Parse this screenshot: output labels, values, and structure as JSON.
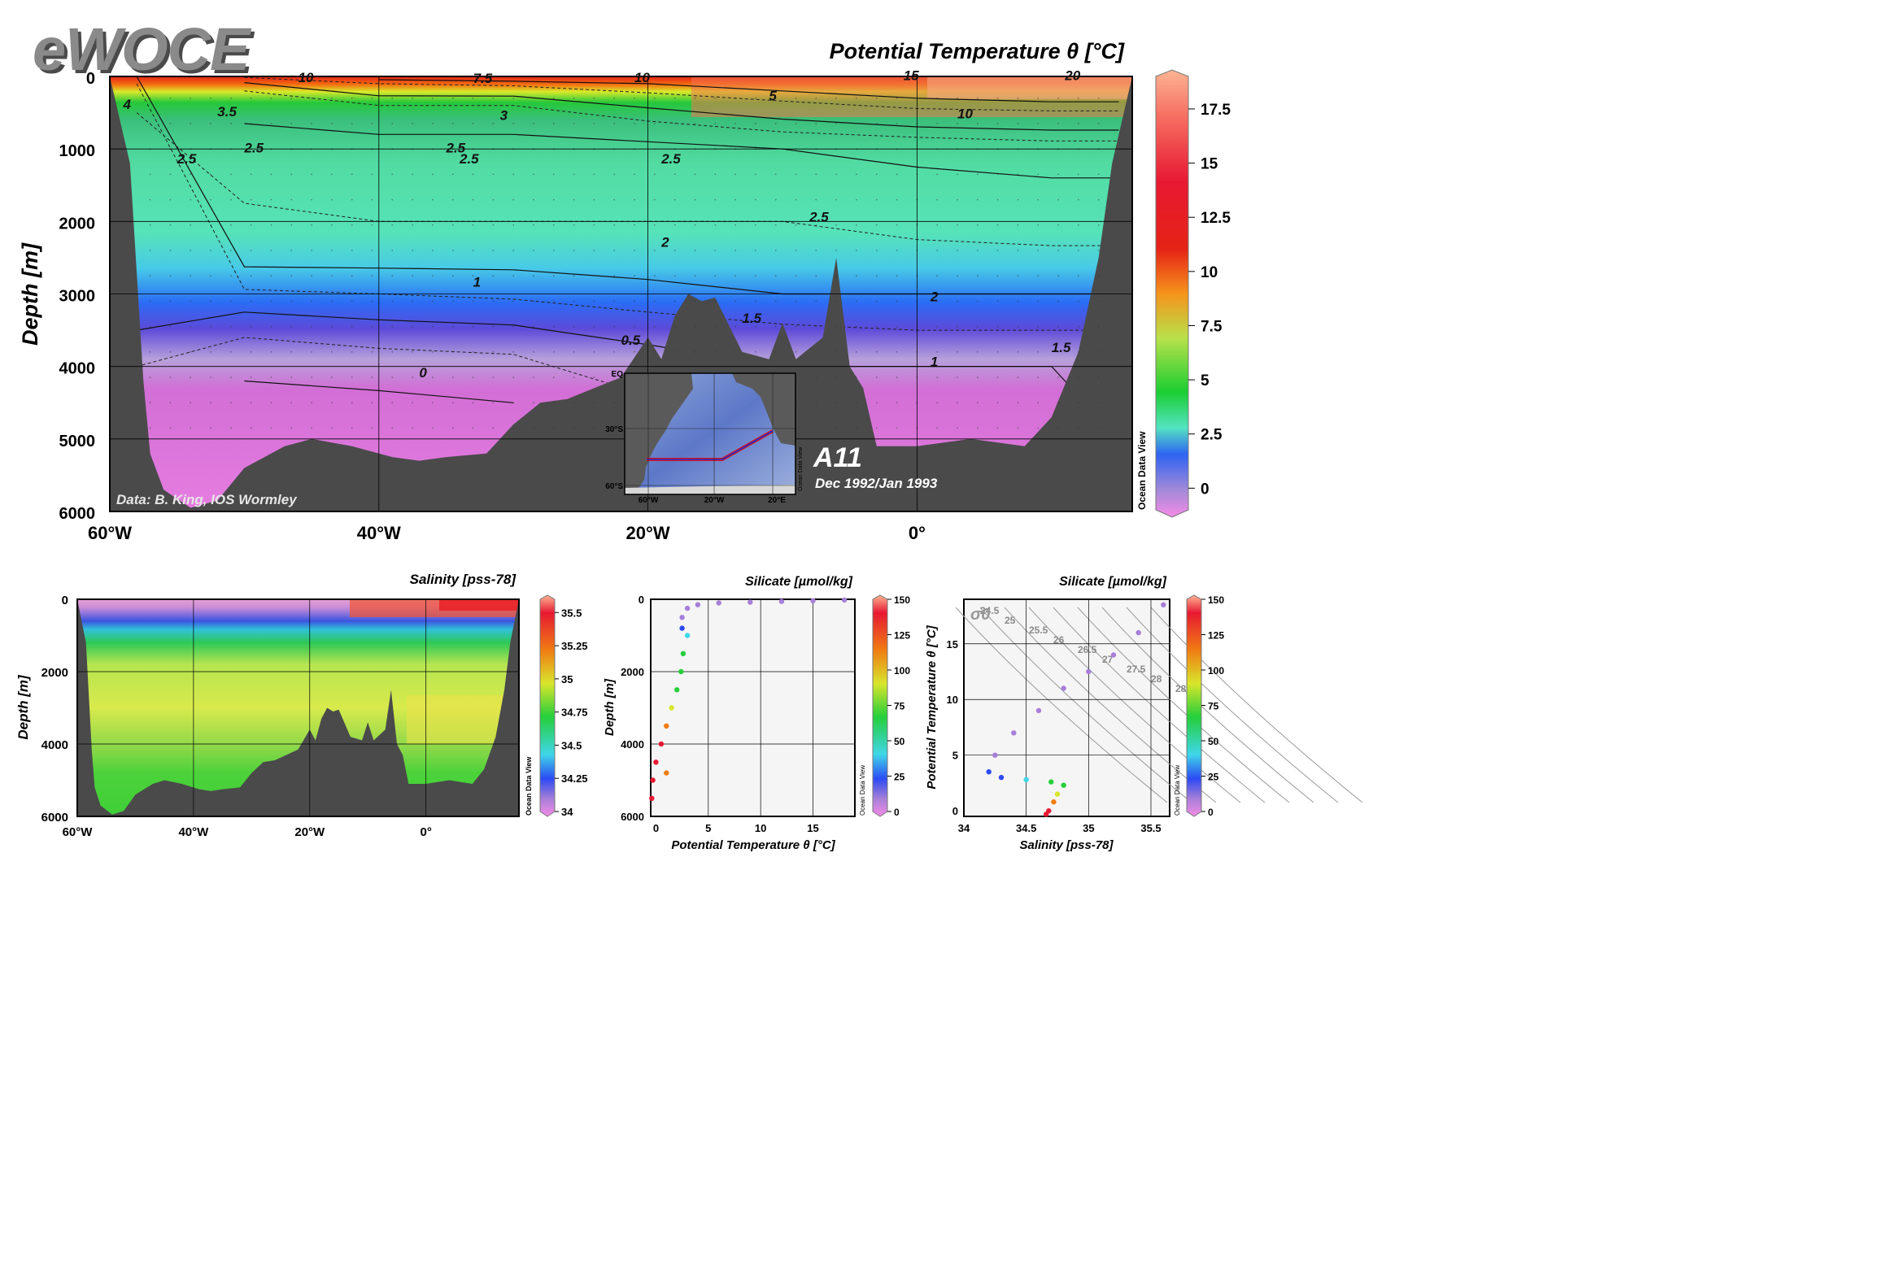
{
  "logo": "eWOCE",
  "main_section": {
    "title": "Potential Temperature θ [°C]",
    "ylabel": "Depth [m]",
    "y_ticks": [
      "0",
      "1000",
      "2000",
      "3000",
      "4000",
      "5000",
      "6000"
    ],
    "x_ticks": [
      "60°W",
      "40°W",
      "20°W",
      "0°"
    ],
    "credit": "Data: B. King, IOS Wormley",
    "cruise": "A11",
    "dates": "Dec 1992/Jan 1993",
    "odv": "Ocean Data View",
    "contour_labels": [
      "10",
      "7.5",
      "10",
      "15",
      "20",
      "4",
      "3.5",
      "3",
      "5",
      "10",
      "2.5",
      "2.5",
      "2.5",
      "2.5",
      "2.5",
      "2.5",
      "2",
      "1",
      "2",
      "1.5",
      "1.5",
      "0.5",
      "1",
      "0"
    ],
    "colorbar_ticks": [
      "17.5",
      "15",
      "12.5",
      "10",
      "7.5",
      "5",
      "2.5",
      "0"
    ]
  },
  "inset_map": {
    "lat_labels": [
      "EQ",
      "30°S",
      "60°S"
    ],
    "lon_labels": [
      "60°W",
      "20°W",
      "20°E"
    ],
    "odv": "Ocean Data View"
  },
  "salinity_section": {
    "title": "Salinity [pss-78]",
    "ylabel": "Depth [m]",
    "y_ticks": [
      "0",
      "2000",
      "4000",
      "6000"
    ],
    "x_ticks": [
      "60°W",
      "40°W",
      "20°W",
      "0°"
    ],
    "colorbar_ticks": [
      "35.5",
      "35.25",
      "35",
      "34.75",
      "34.5",
      "34.25",
      "34"
    ],
    "odv": "Ocean Data View"
  },
  "profile_plot": {
    "title": "Silicate [µmol/kg]",
    "xlabel": "Potential Temperature θ [°C]",
    "ylabel": "Depth [m]",
    "x_ticks": [
      "0",
      "5",
      "10",
      "15"
    ],
    "y_ticks": [
      "0",
      "2000",
      "4000",
      "6000"
    ],
    "colorbar_ticks": [
      "150",
      "125",
      "100",
      "75",
      "50",
      "25",
      "0"
    ],
    "odv": "Ocean Data View"
  },
  "ts_plot": {
    "title": "Silicate [µmol/kg]",
    "xlabel": "Salinity [pss-78]",
    "ylabel": "Potential Temperature θ [°C]",
    "x_ticks": [
      "34",
      "34.5",
      "35",
      "35.5"
    ],
    "y_ticks": [
      "15",
      "10",
      "5",
      "0"
    ],
    "sigma_label": "σ0",
    "isopycnal_labels": [
      "24.5",
      "25",
      "25.5",
      "26",
      "26.5",
      "27",
      "27.5",
      "28",
      "28.5"
    ],
    "colorbar_ticks": [
      "150",
      "125",
      "100",
      "75",
      "50",
      "25",
      "0"
    ],
    "odv": "Ocean Data View"
  },
  "chart_data": [
    {
      "type": "heatmap",
      "title": "Potential Temperature θ [°C]",
      "xlabel": "",
      "ylabel": "Depth [m]",
      "xlim": [
        -60,
        16
      ],
      "ylim": [
        6000,
        0
      ],
      "colorbar_range": [
        -1,
        19
      ],
      "profile_z": [
        0,
        100,
        300,
        500,
        800,
        1000,
        1500,
        2000,
        2500,
        3000,
        3500,
        4000,
        5000,
        6000
      ],
      "profiles": [
        {
          "x": -58,
          "temp": [
            2.0,
            1.5,
            2.0,
            2.5,
            2.5,
            2.5,
            2.5,
            2.2,
            2.0,
            1.5,
            1.0,
            0.5,
            0.2,
            0.1
          ]
        },
        {
          "x": -50,
          "temp": [
            8.0,
            4.5,
            3.5,
            3.2,
            2.8,
            2.6,
            2.6,
            2.4,
            2.2,
            1.4,
            0.6,
            0.1,
            -0.4,
            -0.5
          ]
        },
        {
          "x": -40,
          "temp": [
            12.0,
            7.5,
            4.5,
            3.5,
            3.0,
            2.7,
            2.6,
            2.5,
            2.2,
            1.5,
            0.8,
            0.2,
            -0.4,
            -0.5
          ]
        },
        {
          "x": -30,
          "temp": [
            14.0,
            8.0,
            4.5,
            3.5,
            3.0,
            2.7,
            2.6,
            2.5,
            2.2,
            1.6,
            0.9,
            0.3,
            -0.3,
            -0.4
          ]
        },
        {
          "x": -20,
          "temp": [
            15.0,
            10.0,
            6.0,
            4.5,
            3.2,
            2.8,
            2.6,
            2.5,
            2.3,
            1.8,
            1.2,
            0.7,
            0.2,
            0.1
          ]
        },
        {
          "x": -10,
          "temp": [
            16.0,
            12.0,
            8.0,
            5.5,
            3.8,
            3.0,
            2.7,
            2.5,
            2.3,
            2.0,
            1.4,
            1.0,
            0.6,
            0.5
          ]
        },
        {
          "x": 0,
          "temp": [
            18.0,
            14.0,
            10.0,
            6.5,
            4.2,
            3.2,
            2.8,
            2.6,
            2.4,
            2.0,
            1.5,
            1.0,
            0.6,
            0.5
          ]
        },
        {
          "x": 10,
          "temp": [
            19.0,
            16.0,
            11.0,
            7.0,
            4.5,
            3.4,
            2.9,
            2.7,
            2.4,
            2.0,
            1.5,
            1.0,
            0.6,
            0.5
          ]
        },
        {
          "x": 15,
          "temp": [
            19.0,
            16.0,
            11.0,
            7.0,
            4.5,
            3.4,
            2.9,
            2.7,
            2.4,
            2.0,
            1.5,
            1.2,
            1.0,
            1.0
          ]
        }
      ],
      "bottom_depth": [
        {
          "x": -60,
          "z": 0
        },
        {
          "x": -58.5,
          "z": 1200
        },
        {
          "x": -57.5,
          "z": 4200
        },
        {
          "x": -57,
          "z": 5200
        },
        {
          "x": -56,
          "z": 5700
        },
        {
          "x": -54,
          "z": 5950
        },
        {
          "x": -52,
          "z": 5850
        },
        {
          "x": -50,
          "z": 5400
        },
        {
          "x": -47,
          "z": 5100
        },
        {
          "x": -45,
          "z": 5000
        },
        {
          "x": -42,
          "z": 5100
        },
        {
          "x": -39,
          "z": 5250
        },
        {
          "x": -37,
          "z": 5300
        },
        {
          "x": -35,
          "z": 5250
        },
        {
          "x": -32,
          "z": 5200
        },
        {
          "x": -30,
          "z": 4800
        },
        {
          "x": -28,
          "z": 4500
        },
        {
          "x": -26,
          "z": 4450
        },
        {
          "x": -24,
          "z": 4300
        },
        {
          "x": -22,
          "z": 4150
        },
        {
          "x": -20,
          "z": 3600
        },
        {
          "x": -19,
          "z": 3900
        },
        {
          "x": -18,
          "z": 3300
        },
        {
          "x": -17,
          "z": 3000
        },
        {
          "x": -16,
          "z": 3100
        },
        {
          "x": -15,
          "z": 3050
        },
        {
          "x": -13,
          "z": 3800
        },
        {
          "x": -11,
          "z": 3900
        },
        {
          "x": -10,
          "z": 3400
        },
        {
          "x": -9,
          "z": 3900
        },
        {
          "x": -7,
          "z": 3600
        },
        {
          "x": -6,
          "z": 2500
        },
        {
          "x": -5,
          "z": 4000
        },
        {
          "x": -4,
          "z": 4300
        },
        {
          "x": -3,
          "z": 5100
        },
        {
          "x": 0,
          "z": 5100
        },
        {
          "x": 4,
          "z": 5000
        },
        {
          "x": 8,
          "z": 5100
        },
        {
          "x": 10,
          "z": 4700
        },
        {
          "x": 12,
          "z": 3800
        },
        {
          "x": 13.5,
          "z": 2500
        },
        {
          "x": 14.5,
          "z": 1200
        },
        {
          "x": 16,
          "z": 0
        }
      ]
    },
    {
      "type": "heatmap",
      "title": "Salinity [pss-78]",
      "xlabel": "",
      "ylabel": "Depth [m]",
      "xlim": [
        -60,
        16
      ],
      "ylim": [
        6000,
        0
      ],
      "colorbar_range": [
        34,
        35.6
      ],
      "profile_z": [
        0,
        100,
        300,
        600,
        1000,
        1500,
        2000,
        3000,
        4000,
        5000,
        6000
      ],
      "profiles": [
        {
          "x": -58,
          "sal": [
            34.1,
            34.2,
            34.3,
            34.4,
            34.55,
            34.7,
            34.72,
            34.72,
            34.68,
            34.66,
            34.66
          ]
        },
        {
          "x": -40,
          "sal": [
            34.2,
            34.1,
            34.15,
            34.3,
            34.5,
            34.68,
            34.76,
            34.76,
            34.7,
            34.68,
            34.68
          ]
        },
        {
          "x": -20,
          "sal": [
            34.6,
            34.3,
            34.2,
            34.3,
            34.5,
            34.7,
            34.76,
            34.78,
            34.72,
            34.68,
            34.68
          ]
        },
        {
          "x": 0,
          "sal": [
            35.3,
            35.0,
            34.6,
            34.35,
            34.45,
            34.7,
            34.8,
            34.85,
            34.8,
            34.75,
            34.75
          ]
        },
        {
          "x": 15,
          "sal": [
            35.5,
            35.2,
            34.8,
            34.45,
            34.5,
            34.75,
            34.82,
            34.88,
            34.85,
            34.8,
            34.8
          ]
        }
      ]
    },
    {
      "type": "scatter",
      "title": "Silicate [µmol/kg]",
      "xlabel": "Potential Temperature θ [°C]",
      "ylabel": "Depth [m]",
      "xlim": [
        -0.5,
        19
      ],
      "ylim": [
        6000,
        0
      ],
      "color_range": [
        0,
        150
      ],
      "points": [
        {
          "x": 18,
          "y": 20,
          "c": 2
        },
        {
          "x": 15,
          "y": 40,
          "c": 3
        },
        {
          "x": 12,
          "y": 60,
          "c": 3
        },
        {
          "x": 9,
          "y": 80,
          "c": 4
        },
        {
          "x": 6,
          "y": 100,
          "c": 5
        },
        {
          "x": 4,
          "y": 150,
          "c": 8
        },
        {
          "x": 3,
          "y": 250,
          "c": 10
        },
        {
          "x": 2.5,
          "y": 500,
          "c": 15
        },
        {
          "x": 2.5,
          "y": 800,
          "c": 25
        },
        {
          "x": 3,
          "y": 1000,
          "c": 40
        },
        {
          "x": 2.6,
          "y": 1500,
          "c": 50
        },
        {
          "x": 2.4,
          "y": 2000,
          "c": 60
        },
        {
          "x": 2,
          "y": 2500,
          "c": 70
        },
        {
          "x": 1.5,
          "y": 3000,
          "c": 85
        },
        {
          "x": 1,
          "y": 3500,
          "c": 100
        },
        {
          "x": 0.5,
          "y": 4000,
          "c": 120
        },
        {
          "x": 0,
          "y": 4500,
          "c": 130
        },
        {
          "x": -0.3,
          "y": 5000,
          "c": 135
        },
        {
          "x": -0.4,
          "y": 5500,
          "c": 138
        },
        {
          "x": 1,
          "y": 4800,
          "c": 110
        }
      ]
    },
    {
      "type": "scatter",
      "title": "Silicate [µmol/kg]",
      "xlabel": "Salinity [pss-78]",
      "ylabel": "Potential Temperature θ [°C]",
      "xlim": [
        34,
        35.65
      ],
      "ylim": [
        -0.5,
        19
      ],
      "color_range": [
        0,
        150
      ],
      "points": [
        {
          "x": 35.6,
          "y": 18.5,
          "c": 2
        },
        {
          "x": 35.4,
          "y": 16,
          "c": 3
        },
        {
          "x": 35.2,
          "y": 14,
          "c": 4
        },
        {
          "x": 35.0,
          "y": 12.5,
          "c": 5
        },
        {
          "x": 34.8,
          "y": 11,
          "c": 6
        },
        {
          "x": 34.6,
          "y": 9,
          "c": 8
        },
        {
          "x": 34.4,
          "y": 7,
          "c": 10
        },
        {
          "x": 34.25,
          "y": 5,
          "c": 12
        },
        {
          "x": 34.2,
          "y": 3.5,
          "c": 20
        },
        {
          "x": 34.3,
          "y": 3,
          "c": 25
        },
        {
          "x": 34.5,
          "y": 2.8,
          "c": 45
        },
        {
          "x": 34.7,
          "y": 2.6,
          "c": 55
        },
        {
          "x": 34.8,
          "y": 2.3,
          "c": 65
        },
        {
          "x": 34.75,
          "y": 1.5,
          "c": 85
        },
        {
          "x": 34.72,
          "y": 0.8,
          "c": 105
        },
        {
          "x": 34.68,
          "y": 0,
          "c": 125
        },
        {
          "x": 34.66,
          "y": -0.3,
          "c": 140
        }
      ]
    }
  ]
}
